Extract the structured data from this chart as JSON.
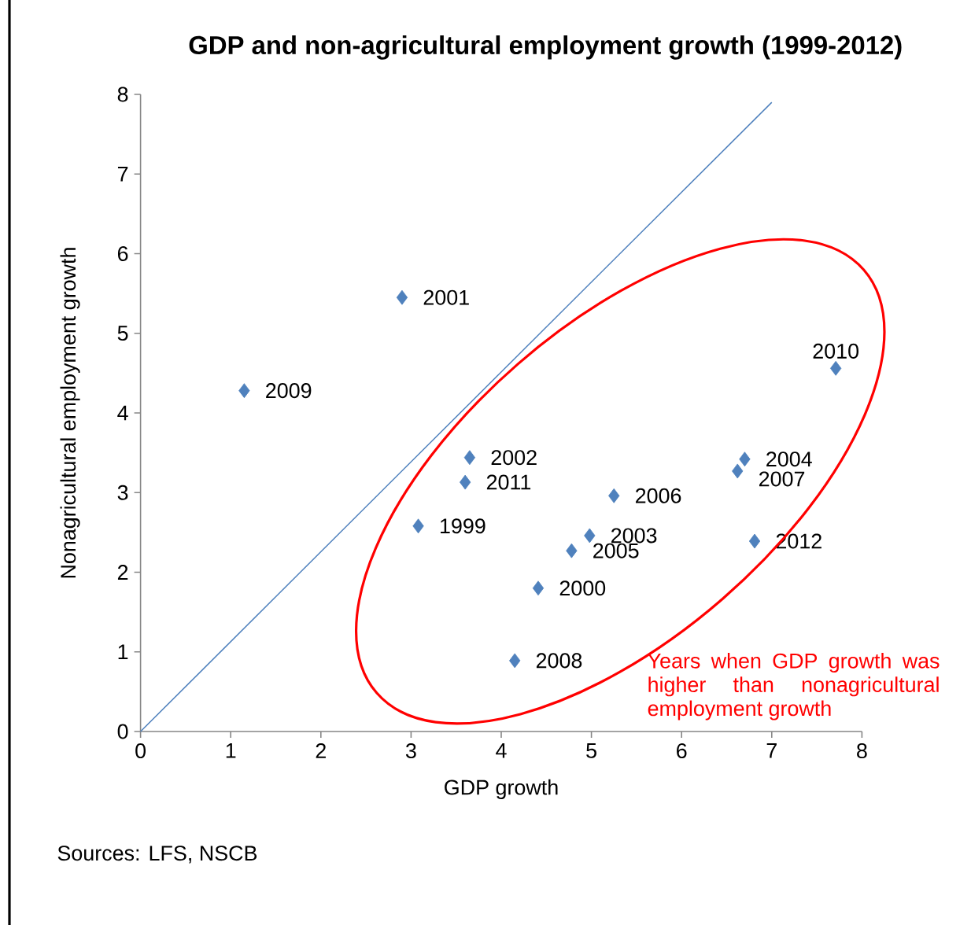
{
  "chart_data": {
    "type": "scatter",
    "title": "GDP and non-agricultural employment growth (1999-2012)",
    "xlabel": "GDP growth",
    "ylabel": "Nonagricultural employment growth",
    "xlim": [
      0,
      8
    ],
    "ylim": [
      0,
      8
    ],
    "xticks": [
      0,
      1,
      2,
      3,
      4,
      5,
      6,
      7,
      8
    ],
    "yticks": [
      0,
      1,
      2,
      3,
      4,
      5,
      6,
      7,
      8
    ],
    "marker": "diamond",
    "series": [
      {
        "color": "#4f81bd",
        "x": [
          3.08,
          4.41,
          2.9,
          3.65,
          4.98,
          6.7,
          4.78,
          5.25,
          6.62,
          4.15,
          1.15,
          7.71,
          3.6,
          6.81
        ],
        "values": [
          2.58,
          1.8,
          5.45,
          3.44,
          2.46,
          3.42,
          2.27,
          2.96,
          3.27,
          0.89,
          4.28,
          4.56,
          3.13,
          2.39
        ]
      },
      {
        "type": "line",
        "color": "#4f81bd",
        "marker": "none",
        "x": [
          0,
          7
        ],
        "values": [
          0,
          7.9
        ]
      }
    ],
    "annotations": [
      {
        "text": "1999",
        "x": 3.08,
        "y": 2.58
      },
      {
        "text": "2000",
        "x": 4.41,
        "y": 1.8
      },
      {
        "text": "2001",
        "x": 2.9,
        "y": 5.45
      },
      {
        "text": "2002",
        "x": 3.65,
        "y": 3.44
      },
      {
        "text": "2003",
        "x": 4.98,
        "y": 2.46
      },
      {
        "text": "2004",
        "x": 6.7,
        "y": 3.42
      },
      {
        "text": "2005",
        "x": 4.78,
        "y": 2.27
      },
      {
        "text": "2006",
        "x": 5.25,
        "y": 2.96
      },
      {
        "text": "2007",
        "x": 6.62,
        "y": 3.27
      },
      {
        "text": "2008",
        "x": 4.15,
        "y": 0.89
      },
      {
        "text": "2009",
        "x": 1.15,
        "y": 4.28
      },
      {
        "text": "2010",
        "x": 7.71,
        "y": 4.56
      },
      {
        "text": "2011",
        "x": 3.6,
        "y": 3.13
      },
      {
        "text": "2012",
        "x": 6.81,
        "y": 2.39
      },
      "Years when GDP growth was higher than nonagricultural employment growth",
      "Sources: LFS, NSCB"
    ]
  }
}
